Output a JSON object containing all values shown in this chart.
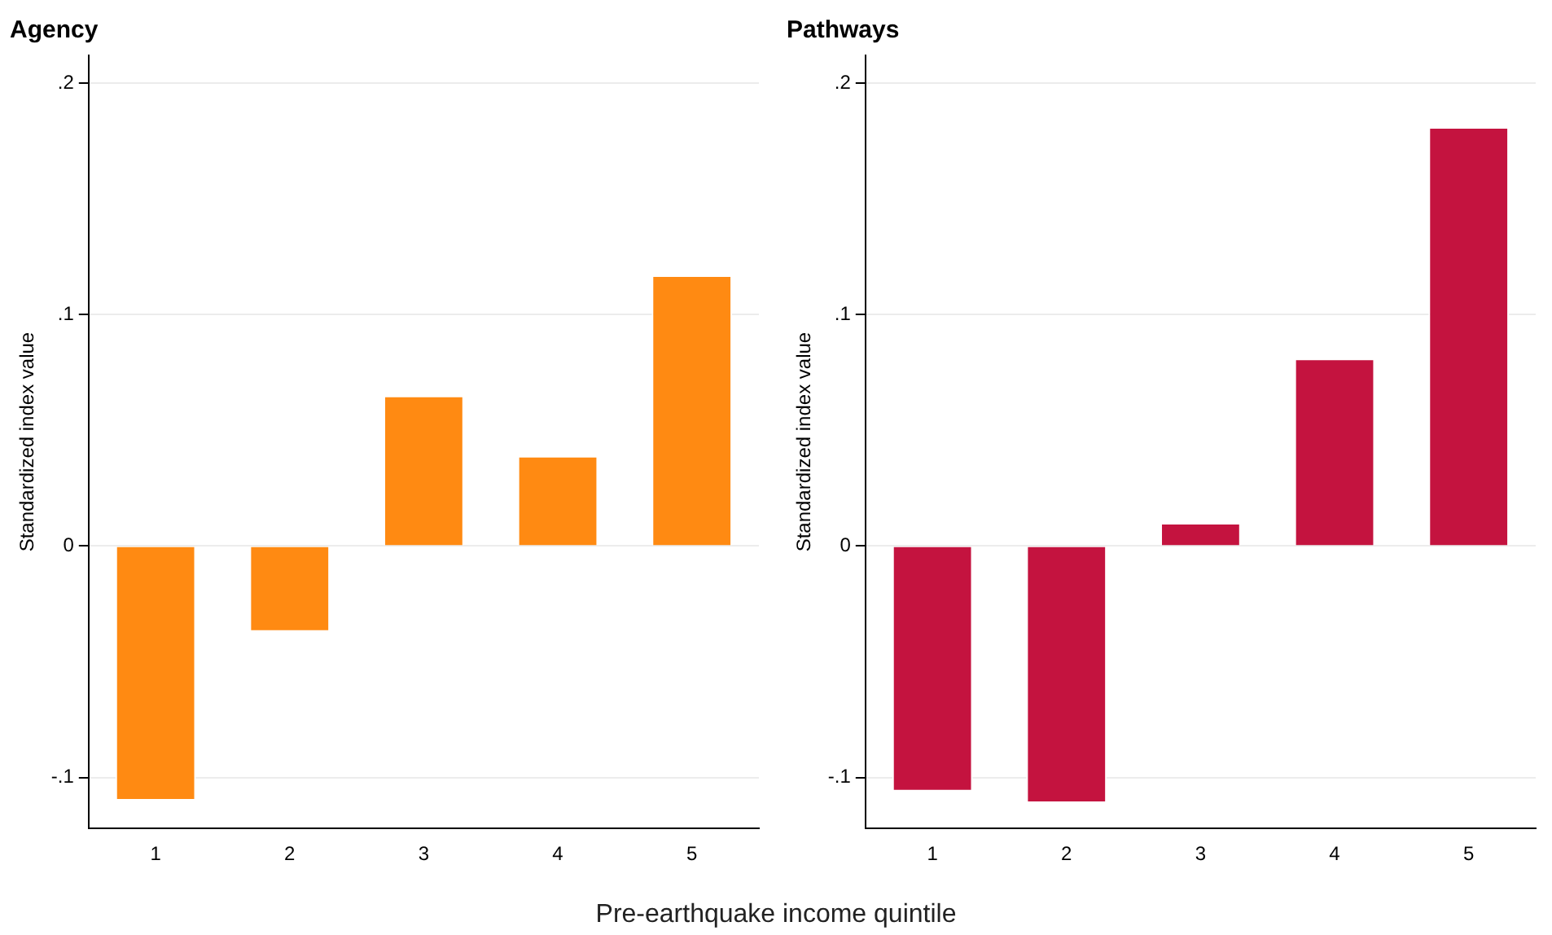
{
  "chart_data": [
    {
      "type": "bar",
      "title": "Agency",
      "ylabel": "Standardized index value",
      "xlabel": "Pre-earthquake income quintile",
      "categories": [
        "1",
        "2",
        "3",
        "4",
        "5"
      ],
      "values": [
        -0.11,
        -0.037,
        0.065,
        0.039,
        0.117
      ],
      "color": "#ff8a12",
      "ylim": [
        -0.122,
        0.212
      ],
      "yticks": [
        {
          "value": -0.1,
          "label": "-.1"
        },
        {
          "value": 0,
          "label": "0"
        },
        {
          "value": 0.1,
          "label": ".1"
        },
        {
          "value": 0.2,
          "label": ".2"
        }
      ],
      "grid": "y",
      "legend": false
    },
    {
      "type": "bar",
      "title": "Pathways",
      "ylabel": "Standardized index value",
      "categories": [
        "1",
        "2",
        "3",
        "4",
        "5"
      ],
      "values": [
        -0.106,
        -0.111,
        0.01,
        0.081,
        0.181
      ],
      "color": "#c4133f",
      "ylim": [
        -0.122,
        0.212
      ],
      "yticks": [
        {
          "value": -0.1,
          "label": "-.1"
        },
        {
          "value": 0,
          "label": "0"
        },
        {
          "value": 0.1,
          "label": ".1"
        },
        {
          "value": 0.2,
          "label": ".2"
        }
      ],
      "grid": "y",
      "legend": false
    }
  ]
}
